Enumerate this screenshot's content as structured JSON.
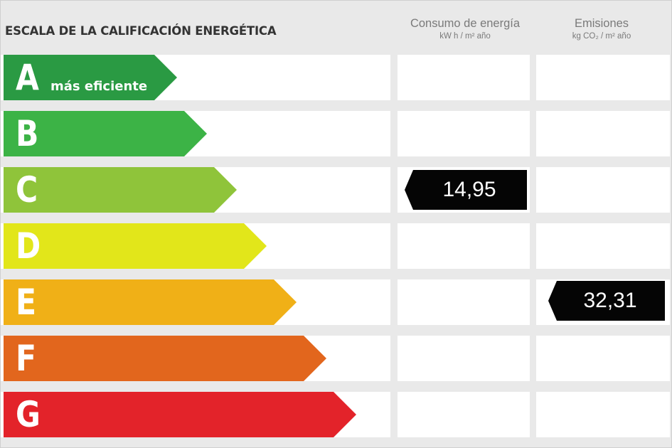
{
  "title": "ESCALA DE LA CALIFICACIÓN ENERGÉTICA",
  "columns": {
    "consumption": {
      "heading": "Consumo de energía",
      "unit": "kW h / m² año"
    },
    "emissions": {
      "heading": "Emisiones",
      "unit": "kg CO₂ / m² año"
    }
  },
  "ratings": [
    {
      "letter": "A",
      "note": "más eficiente",
      "color": "#2a9a43"
    },
    {
      "letter": "B",
      "note": "",
      "color": "#3cb346"
    },
    {
      "letter": "C",
      "note": "",
      "color": "#8fc43a"
    },
    {
      "letter": "D",
      "note": "",
      "color": "#e2e61a"
    },
    {
      "letter": "E",
      "note": "",
      "color": "#f0b017"
    },
    {
      "letter": "F",
      "note": "",
      "color": "#e2661d"
    },
    {
      "letter": "G",
      "note": "",
      "color": "#e3232a"
    }
  ],
  "consumption_value": {
    "rating": "C",
    "text": "14,95"
  },
  "emissions_value": {
    "rating": "E",
    "text": "32,31"
  }
}
